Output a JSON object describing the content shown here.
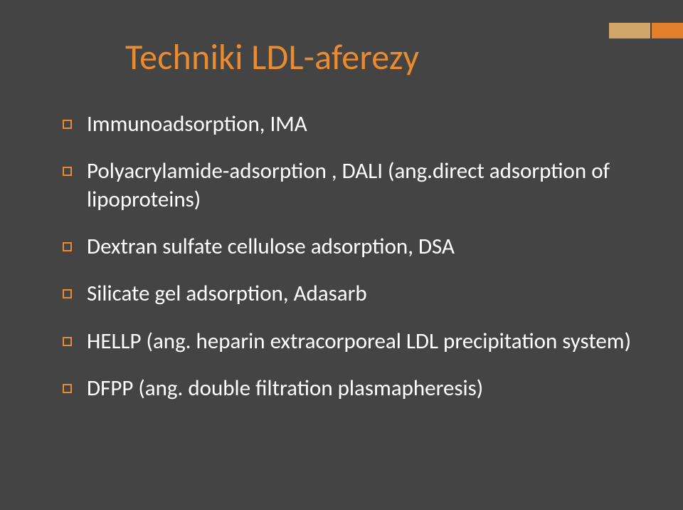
{
  "title": {
    "text": "Techniki LDL-aferezy",
    "color": "#e98b2e",
    "fontsize": 50
  },
  "accent": {
    "bar_light_color": "#d2a56a",
    "bar_dark_color": "#e37f2b"
  },
  "background_color": "#444444",
  "bullet_border_color": "#e98b2e",
  "text_color": "#ffffff",
  "font_family": "Calibri",
  "bullets": [
    {
      "text": "Immunoadsorption, IMA"
    },
    {
      "text": "Polyacrylamide-adsorption , DALI (ang.direct adsorption of lipoproteins)"
    },
    {
      "text": "Dextran sulfate cellulose adsorption,  DSA"
    },
    {
      "text": "Silicate gel adsorption, Adasarb"
    },
    {
      "text": "HELLP (ang. heparin extracorporeal LDL precipitation system)"
    },
    {
      "text": "DFPP (ang. double filtration plasmapheresis)"
    }
  ]
}
